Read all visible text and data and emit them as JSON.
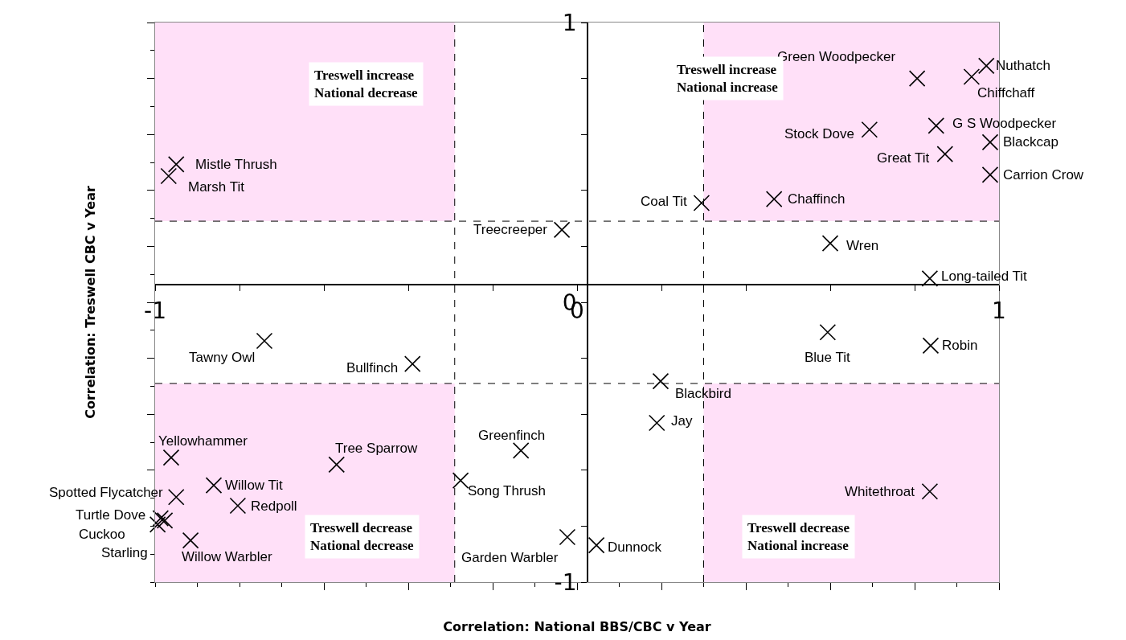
{
  "chart_data": {
    "type": "scatter",
    "xlabel": "Correlation: National BBS/CBC v Year",
    "ylabel": "Correlation: Treswell CBC v Year",
    "x": [
      0.97,
      0.806,
      0.935,
      0.851,
      0.693,
      0.979,
      0.872,
      0.979,
      0.467,
      0.295,
      -0.036,
      0.6,
      0.836,
      -0.95,
      -0.968,
      -0.741,
      -0.39,
      0.594,
      0.838,
      0.198,
      0.189,
      -0.133,
      -0.57,
      -0.962,
      -0.861,
      -0.95,
      -0.276,
      -0.804,
      -0.987,
      -0.977,
      -0.994,
      -0.916,
      0.836,
      -0.023,
      0.046
    ],
    "series": [
      {
        "color": "#000000",
        "values": [
          0.845,
          0.8,
          0.806,
          0.631,
          0.617,
          0.572,
          0.53,
          0.456,
          0.369,
          0.355,
          0.259,
          0.211,
          0.085,
          0.493,
          0.451,
          -0.138,
          -0.22,
          -0.107,
          -0.155,
          -0.282,
          -0.431,
          -0.53,
          -0.58,
          -0.555,
          -0.654,
          -0.696,
          -0.637,
          -0.727,
          -0.772,
          -0.78,
          -0.794,
          -0.851,
          -0.676,
          -0.839,
          -0.868
        ]
      }
    ],
    "marker": "cross",
    "grid": false,
    "xlim": [
      -1,
      1
    ],
    "ylim": [
      -1,
      1
    ],
    "xticks": [
      {
        "value": -1,
        "label": "-1"
      },
      {
        "value": -0.8,
        "label": null
      },
      {
        "value": -0.6,
        "label": null
      },
      {
        "value": -0.4,
        "label": null
      },
      {
        "value": -0.2,
        "label": null
      },
      {
        "value": 0,
        "label": "0"
      },
      {
        "value": 0.2,
        "label": null
      },
      {
        "value": 0.4,
        "label": null
      },
      {
        "value": 0.6,
        "label": null
      },
      {
        "value": 0.8,
        "label": null
      },
      {
        "value": 1,
        "label": "1"
      }
    ],
    "yticks": [
      {
        "value": -1,
        "label": "-1"
      },
      {
        "value": -0.8,
        "label": null
      },
      {
        "value": -0.6,
        "label": null
      },
      {
        "value": -0.4,
        "label": null
      },
      {
        "value": -0.2,
        "label": null
      },
      {
        "value": 0,
        "label": "0"
      },
      {
        "value": 0.2,
        "label": null
      },
      {
        "value": 0.4,
        "label": null
      },
      {
        "value": 0.6,
        "label": null
      },
      {
        "value": 0.8,
        "label": null
      },
      {
        "value": 1,
        "label": "1"
      }
    ],
    "ref_lines": [
      {
        "axis": "x",
        "value": -0.29,
        "line_style": "dashed"
      },
      {
        "axis": "x",
        "value": 0.3,
        "line_style": "dashed"
      },
      {
        "axis": "y",
        "value": 0.29,
        "line_style": "dashed"
      },
      {
        "axis": "y",
        "value": -0.29,
        "line_style": "dashed"
      }
    ],
    "bands": [
      {
        "axis": "x",
        "from": -1,
        "to": -0.29,
        "color": "#ffe0f8"
      },
      {
        "axis": "x",
        "from": 0.3,
        "to": 1,
        "color": "#ffe0f8"
      },
      {
        "axis": "x",
        "from": -1,
        "to": -0.29,
        "color": "#ffe0f8"
      },
      {
        "axis": "x",
        "from": 0.3,
        "to": 1,
        "color": "#ffe0f8"
      }
    ],
    "annotations": [
      {
        "text": "Nuthatch",
        "x": 0.97,
        "y": 0.845
      },
      {
        "text": "Green Woodpecker",
        "x": 0.806,
        "y": 0.8
      },
      {
        "text": "Chiffchaff",
        "x": 0.935,
        "y": 0.806
      },
      {
        "text": "G S Woodpecker",
        "x": 0.851,
        "y": 0.631
      },
      {
        "text": "Stock Dove",
        "x": 0.693,
        "y": 0.617
      },
      {
        "text": "Blackcap",
        "x": 0.979,
        "y": 0.572
      },
      {
        "text": "Great Tit",
        "x": 0.872,
        "y": 0.53
      },
      {
        "text": "Carrion Crow",
        "x": 0.979,
        "y": 0.456
      },
      {
        "text": "Chaffinch",
        "x": 0.467,
        "y": 0.369
      },
      {
        "text": "Coal Tit",
        "x": 0.295,
        "y": 0.355
      },
      {
        "text": "Treecreeper",
        "x": -0.036,
        "y": 0.259
      },
      {
        "text": "Wren",
        "x": 0.6,
        "y": 0.211
      },
      {
        "text": "Long-tailed Tit",
        "x": 0.836,
        "y": 0.085
      },
      {
        "text": "Mistle Thrush",
        "x": -0.95,
        "y": 0.493
      },
      {
        "text": "Marsh Tit",
        "x": -0.968,
        "y": 0.451
      },
      {
        "text": "Tawny Owl",
        "x": -0.741,
        "y": -0.138
      },
      {
        "text": "Bullfinch",
        "x": -0.39,
        "y": -0.22
      },
      {
        "text": "Blue Tit",
        "x": 0.594,
        "y": -0.107
      },
      {
        "text": "Robin",
        "x": 0.838,
        "y": -0.155
      },
      {
        "text": "Blackbird",
        "x": 0.198,
        "y": -0.282
      },
      {
        "text": "Jay",
        "x": 0.189,
        "y": -0.431
      },
      {
        "text": "Greenfinch",
        "x": -0.133,
        "y": -0.53
      },
      {
        "text": "Tree Sparrow",
        "x": -0.57,
        "y": -0.58
      },
      {
        "text": "Yellowhammer",
        "x": -0.962,
        "y": -0.555
      },
      {
        "text": "Willow Tit",
        "x": -0.861,
        "y": -0.654
      },
      {
        "text": "Spotted Flycatcher",
        "x": -0.95,
        "y": -0.696
      },
      {
        "text": "Song Thrush",
        "x": -0.276,
        "y": -0.637
      },
      {
        "text": "Redpoll",
        "x": -0.804,
        "y": -0.727
      },
      {
        "text": "Turtle Dove",
        "x": -0.987,
        "y": -0.772
      },
      {
        "text": "Cuckoo",
        "x": -0.977,
        "y": -0.78
      },
      {
        "text": "Starling",
        "x": -0.994,
        "y": -0.794
      },
      {
        "text": "Willow Warbler",
        "x": -0.916,
        "y": -0.851
      },
      {
        "text": "Whitethroat",
        "x": 0.836,
        "y": -0.676
      },
      {
        "text": "Garden Warbler",
        "x": -0.023,
        "y": -0.839
      },
      {
        "text": "Dunnock",
        "x": 0.046,
        "y": -0.868
      },
      "Treswell increase\nNational decrease",
      "Treswell increase\nNational increase",
      "Treswell decrease\nNational decrease",
      "Treswell decrease\nNational increase"
    ]
  }
}
